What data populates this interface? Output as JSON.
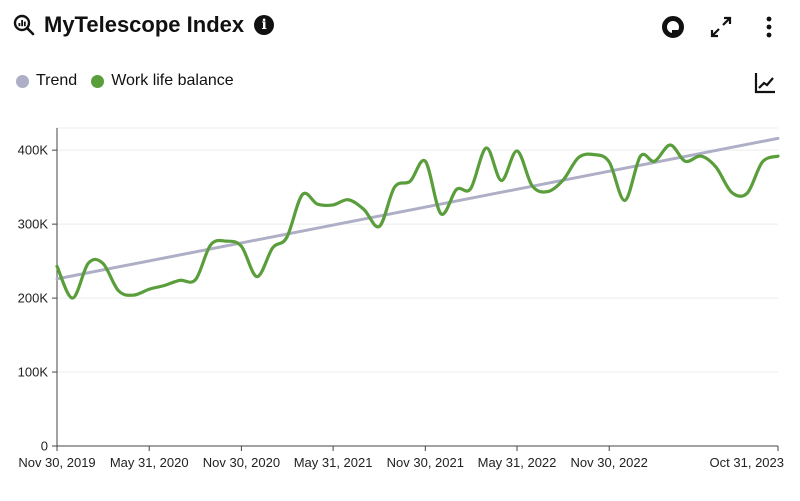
{
  "header": {
    "title": "MyTelescope Index",
    "info_glyph": "i",
    "icons": [
      "search-analytics-icon",
      "info-icon",
      "ring-icon",
      "expand-icon",
      "more-vertical-icon"
    ]
  },
  "legend": {
    "items": [
      {
        "label": "Trend",
        "color": "#aeaec6"
      },
      {
        "label": "Work life balance",
        "color": "#5a9e3c"
      }
    ]
  },
  "chart_data": {
    "type": "line",
    "title": "",
    "xlabel": "",
    "ylabel": "",
    "ylim": [
      0,
      430000
    ],
    "y_ticks": [
      0,
      100000,
      200000,
      300000,
      400000
    ],
    "y_tick_labels": [
      "0",
      "100K",
      "200K",
      "300K",
      "400K"
    ],
    "x_range": [
      "2019-11-30",
      "2023-10-31"
    ],
    "x_ticks": [
      "2019-11-30",
      "2020-05-31",
      "2020-11-30",
      "2021-05-31",
      "2021-11-30",
      "2022-05-31",
      "2022-11-30",
      "2023-10-31"
    ],
    "x_tick_labels": [
      "Nov 30, 2019",
      "May 31, 2020",
      "Nov 30, 2020",
      "May 31, 2021",
      "Nov 30, 2021",
      "May 31, 2022",
      "Nov 30, 2022",
      "Oct 31, 2023"
    ],
    "grid": "horizontal",
    "legend_position": "top-left",
    "series": [
      {
        "name": "Trend",
        "color": "#aeaec6",
        "x": [
          "2019-11-30",
          "2023-10-31"
        ],
        "values": [
          226000,
          416000
        ]
      },
      {
        "name": "Work life balance",
        "color": "#5a9e3c",
        "x": [
          "2019-11-30",
          "2019-12-31",
          "2020-01-31",
          "2020-02-29",
          "2020-03-31",
          "2020-04-30",
          "2020-05-31",
          "2020-06-30",
          "2020-07-31",
          "2020-08-31",
          "2020-09-30",
          "2020-10-31",
          "2020-11-30",
          "2020-12-31",
          "2021-01-31",
          "2021-02-28",
          "2021-03-31",
          "2021-04-30",
          "2021-05-31",
          "2021-06-30",
          "2021-07-31",
          "2021-08-31",
          "2021-09-30",
          "2021-10-31",
          "2021-11-30",
          "2021-12-31",
          "2022-01-31",
          "2022-02-28",
          "2022-03-31",
          "2022-04-30",
          "2022-05-31",
          "2022-06-30",
          "2022-07-31",
          "2022-08-31",
          "2022-09-30",
          "2022-10-31",
          "2022-11-30",
          "2022-12-31",
          "2023-01-31",
          "2023-02-28",
          "2023-03-31",
          "2023-04-30",
          "2023-05-31",
          "2023-06-30",
          "2023-07-31",
          "2023-08-31",
          "2023-09-30",
          "2023-10-31"
        ],
        "values": [
          243000,
          200000,
          247000,
          247000,
          210000,
          204000,
          212000,
          217000,
          224000,
          225000,
          272000,
          277000,
          270000,
          229000,
          268000,
          282000,
          340000,
          327000,
          326000,
          333000,
          320000,
          297000,
          350000,
          358000,
          385000,
          314000,
          347000,
          348000,
          403000,
          359000,
          399000,
          352000,
          344000,
          360000,
          390000,
          394000,
          384000,
          332000,
          392000,
          385000,
          407000,
          385000,
          392000,
          377000,
          343000,
          342000,
          384000,
          392000
        ]
      }
    ]
  }
}
